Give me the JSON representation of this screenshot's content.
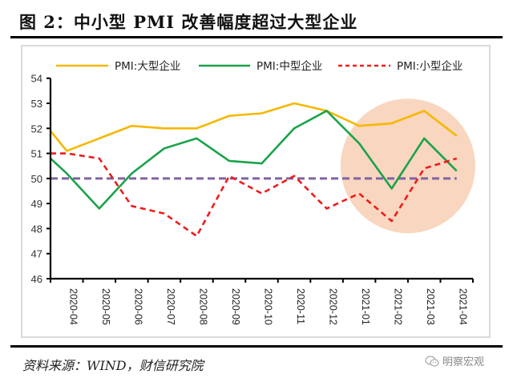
{
  "header": {
    "title": "图 2：中小型 PMI 改善幅度超过大型企业"
  },
  "footer": {
    "source": "资料来源：WIND，财信研究院",
    "watermark": "明察宏观",
    "watermark_icon": "wechat-icon"
  },
  "chart_data": {
    "type": "line",
    "title": "中小型 PMI 改善幅度超过大型企业",
    "xlabel": "",
    "ylabel": "",
    "ylim": [
      46,
      54
    ],
    "yticks": [
      "46",
      "47",
      "48",
      "49",
      "50",
      "51",
      "52",
      "53",
      "54"
    ],
    "categories": [
      "2020-04",
      "2020-05",
      "2020-06",
      "2020-07",
      "2020-08",
      "2020-09",
      "2020-10",
      "2020-11",
      "2020-12",
      "2021-01",
      "2021-02",
      "2021-03",
      "2021-04"
    ],
    "left_edge_values": {
      "PMI:大型企业": 51.9,
      "PMI:中型企业": 50.8,
      "PMI:小型企业": 51.0
    },
    "series": [
      {
        "name": "PMI:大型企业",
        "color": "#f5b800",
        "style": "solid",
        "values": [
          51.1,
          51.6,
          52.1,
          52.0,
          52.0,
          52.5,
          52.6,
          53.0,
          52.7,
          52.1,
          52.2,
          52.7,
          51.7
        ]
      },
      {
        "name": "PMI:中型企业",
        "color": "#1aa34a",
        "style": "solid",
        "values": [
          50.2,
          48.8,
          50.2,
          51.2,
          51.6,
          50.7,
          50.6,
          52.0,
          52.7,
          51.4,
          49.6,
          51.6,
          50.3
        ]
      },
      {
        "name": "PMI:小型企业",
        "color": "#ee1c1c",
        "style": "dashed",
        "values": [
          51.0,
          50.8,
          48.9,
          48.6,
          47.7,
          50.1,
          49.4,
          50.1,
          48.8,
          49.4,
          48.3,
          50.4,
          50.8
        ]
      }
    ],
    "reference_line": {
      "value": 50,
      "color": "#8064a2",
      "style": "dashed"
    },
    "highlight": {
      "shape": "circle",
      "color": "#f8cfb4",
      "covers": [
        "2021-01",
        "2021-02",
        "2021-03",
        "2021-04"
      ]
    },
    "legend": {
      "placement": "top",
      "orientation": "horizontal"
    },
    "grid": false
  }
}
